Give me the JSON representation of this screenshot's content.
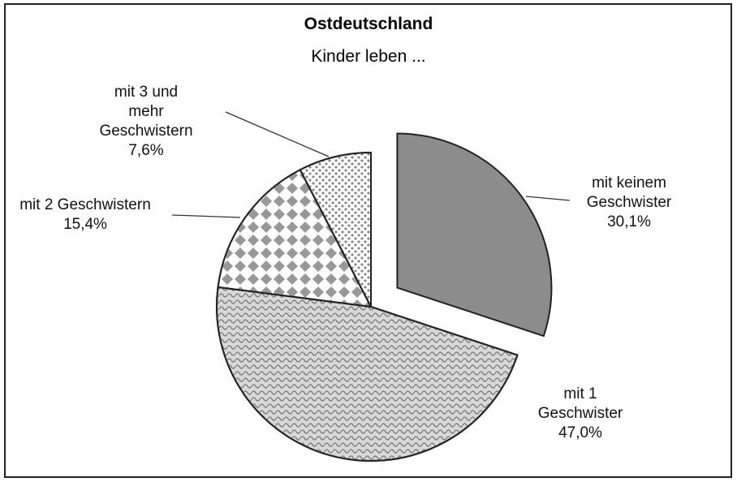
{
  "chart_data": {
    "type": "pie",
    "title": "Ostdeutschland",
    "subtitle": "Kinder leben ...",
    "categories": [
      "mit keinem Geschwister",
      "mit 1 Geschwister",
      "mit 2 Geschwistern",
      "mit 3 und mehr Geschwistern"
    ],
    "values": [
      30.1,
      47.0,
      15.4,
      7.6
    ],
    "value_labels": [
      "30,1%",
      "47,0%",
      "15,4%",
      "7,6%"
    ],
    "colors": [
      "#8c8c8c",
      "#d8d8d8",
      "#ffffff",
      "#ffffff"
    ],
    "exploded": [
      true,
      false,
      false,
      false
    ]
  }
}
